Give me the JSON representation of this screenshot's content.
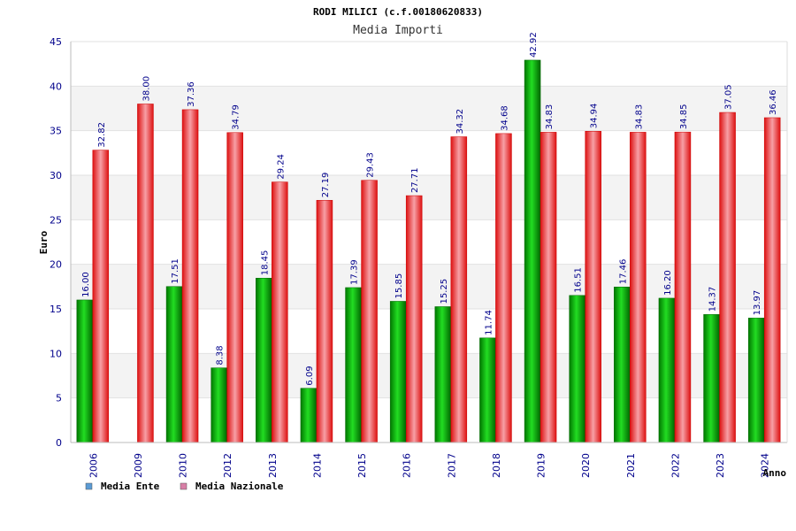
{
  "chart_data": {
    "type": "bar",
    "title": "RODI MILICI (c.f.00180620833)",
    "subtitle": "Media Importi",
    "xlabel": "Anno",
    "ylabel": "Euro",
    "ylim": [
      0,
      45
    ],
    "yticks": [
      0,
      5,
      10,
      15,
      20,
      25,
      30,
      35,
      40,
      45
    ],
    "grid": true,
    "legend_position": "bottom-left",
    "categories": [
      "2006",
      "2009",
      "2010",
      "2012",
      "2013",
      "2014",
      "2015",
      "2016",
      "2017",
      "2018",
      "2019",
      "2020",
      "2021",
      "2022",
      "2023",
      "2024"
    ],
    "series": [
      {
        "name": "Media Ente",
        "legend_color": "#5b9bd5",
        "color": "#00bb00",
        "values": [
          16.0,
          null,
          17.51,
          8.38,
          18.45,
          6.09,
          17.39,
          15.85,
          15.25,
          11.74,
          42.92,
          16.51,
          17.46,
          16.2,
          14.37,
          13.97
        ],
        "labels": [
          "16.00",
          "",
          "17.51",
          "8.38",
          "18.45",
          "6.09",
          "17.39",
          "15.85",
          "15.25",
          "11.74",
          "42.92",
          "16.51",
          "17.46",
          "16.20",
          "14.37",
          "13.97"
        ]
      },
      {
        "name": "Media Nazionale",
        "legend_color": "#d87fa6",
        "color": "#ee1122",
        "values": [
          32.82,
          38.0,
          37.36,
          34.79,
          29.24,
          27.19,
          29.43,
          27.71,
          34.32,
          34.68,
          34.83,
          34.94,
          34.83,
          34.85,
          37.05,
          36.46
        ],
        "labels": [
          "32.82",
          "38.00",
          "37.36",
          "34.79",
          "29.24",
          "27.19",
          "29.43",
          "27.71",
          "34.32",
          "34.68",
          "34.83",
          "34.94",
          "34.83",
          "34.85",
          "37.05",
          "36.46"
        ]
      }
    ]
  }
}
